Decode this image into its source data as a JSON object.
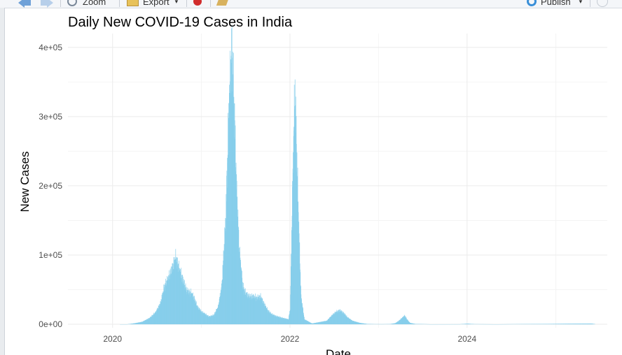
{
  "toolbar": {
    "zoom_label": "Zoom",
    "export_label": "Export",
    "publish_label": "Publish",
    "icons": [
      "back-arrow-icon",
      "forward-arrow-icon",
      "zoom-icon",
      "export-icon",
      "clear-icon",
      "broom-icon",
      "publish-icon",
      "refresh-icon"
    ]
  },
  "chart_data": {
    "type": "bar",
    "title": "Daily New COVID-19 Cases in India",
    "xlabel": "Date",
    "ylabel": "New Cases",
    "bar_color": "#87ceeb",
    "grid": true,
    "xlim": [
      "2019-07-01",
      "2025-08-01"
    ],
    "ylim": [
      -5000,
      420000
    ],
    "x_ticks": [
      {
        "date": "2020-01-01",
        "label": "2020"
      },
      {
        "date": "2022-01-01",
        "label": "2022"
      },
      {
        "date": "2024-01-01",
        "label": "2024"
      }
    ],
    "y_ticks": [
      {
        "value": 0,
        "label": "0e+00"
      },
      {
        "value": 100000,
        "label": "1e+05"
      },
      {
        "value": 200000,
        "label": "2e+05"
      },
      {
        "value": 300000,
        "label": "3e+05"
      },
      {
        "value": 400000,
        "label": "4e+05"
      }
    ],
    "series": [
      {
        "points": [
          [
            "2020-01-30",
            0
          ],
          [
            "2020-03-01",
            50
          ],
          [
            "2020-04-01",
            1500
          ],
          [
            "2020-05-01",
            3500
          ],
          [
            "2020-06-01",
            9000
          ],
          [
            "2020-06-25",
            17000
          ],
          [
            "2020-07-15",
            30000
          ],
          [
            "2020-08-01",
            55000
          ],
          [
            "2020-08-15",
            65000
          ],
          [
            "2020-09-01",
            80000
          ],
          [
            "2020-09-16",
            96000
          ],
          [
            "2020-10-01",
            80000
          ],
          [
            "2020-10-15",
            65000
          ],
          [
            "2020-11-01",
            48000
          ],
          [
            "2020-11-20",
            45000
          ],
          [
            "2020-12-01",
            38000
          ],
          [
            "2020-12-15",
            25000
          ],
          [
            "2021-01-01",
            18000
          ],
          [
            "2021-02-01",
            11000
          ],
          [
            "2021-02-20",
            13000
          ],
          [
            "2021-03-10",
            25000
          ],
          [
            "2021-03-25",
            55000
          ],
          [
            "2021-04-10",
            150000
          ],
          [
            "2021-04-25",
            330000
          ],
          [
            "2021-05-06",
            401000
          ],
          [
            "2021-05-15",
            320000
          ],
          [
            "2021-05-25",
            200000
          ],
          [
            "2021-06-05",
            110000
          ],
          [
            "2021-06-20",
            55000
          ],
          [
            "2021-07-01",
            45000
          ],
          [
            "2021-07-15",
            40000
          ],
          [
            "2021-08-01",
            40000
          ],
          [
            "2021-08-20",
            38000
          ],
          [
            "2021-09-01",
            40000
          ],
          [
            "2021-09-15",
            30000
          ],
          [
            "2021-10-01",
            20000
          ],
          [
            "2021-10-15",
            15000
          ],
          [
            "2021-11-01",
            12000
          ],
          [
            "2021-12-01",
            9000
          ],
          [
            "2021-12-25",
            7000
          ],
          [
            "2022-01-01",
            22000
          ],
          [
            "2022-01-08",
            150000
          ],
          [
            "2022-01-15",
            270000
          ],
          [
            "2022-01-21",
            340000
          ],
          [
            "2022-01-28",
            250000
          ],
          [
            "2022-02-05",
            150000
          ],
          [
            "2022-02-15",
            40000
          ],
          [
            "2022-03-01",
            7000
          ],
          [
            "2022-04-01",
            1200
          ],
          [
            "2022-05-01",
            3000
          ],
          [
            "2022-06-01",
            5000
          ],
          [
            "2022-06-20",
            12000
          ],
          [
            "2022-07-10",
            18000
          ],
          [
            "2022-07-25",
            20000
          ],
          [
            "2022-08-10",
            16000
          ],
          [
            "2022-08-25",
            10000
          ],
          [
            "2022-09-15",
            5000
          ],
          [
            "2022-10-15",
            2000
          ],
          [
            "2022-11-15",
            500
          ],
          [
            "2022-12-15",
            200
          ],
          [
            "2023-01-15",
            150
          ],
          [
            "2023-02-15",
            300
          ],
          [
            "2023-03-10",
            1500
          ],
          [
            "2023-03-25",
            5000
          ],
          [
            "2023-04-10",
            10000
          ],
          [
            "2023-04-18",
            12500
          ],
          [
            "2023-04-28",
            7000
          ],
          [
            "2023-05-10",
            2000
          ],
          [
            "2023-06-01",
            500
          ],
          [
            "2023-08-01",
            50
          ],
          [
            "2023-12-01",
            100
          ],
          [
            "2023-12-25",
            700
          ],
          [
            "2024-01-05",
            800
          ],
          [
            "2024-02-01",
            200
          ],
          [
            "2024-05-01",
            30
          ],
          [
            "2025-05-25",
            1000
          ],
          [
            "2025-06-10",
            400
          ]
        ]
      }
    ]
  }
}
